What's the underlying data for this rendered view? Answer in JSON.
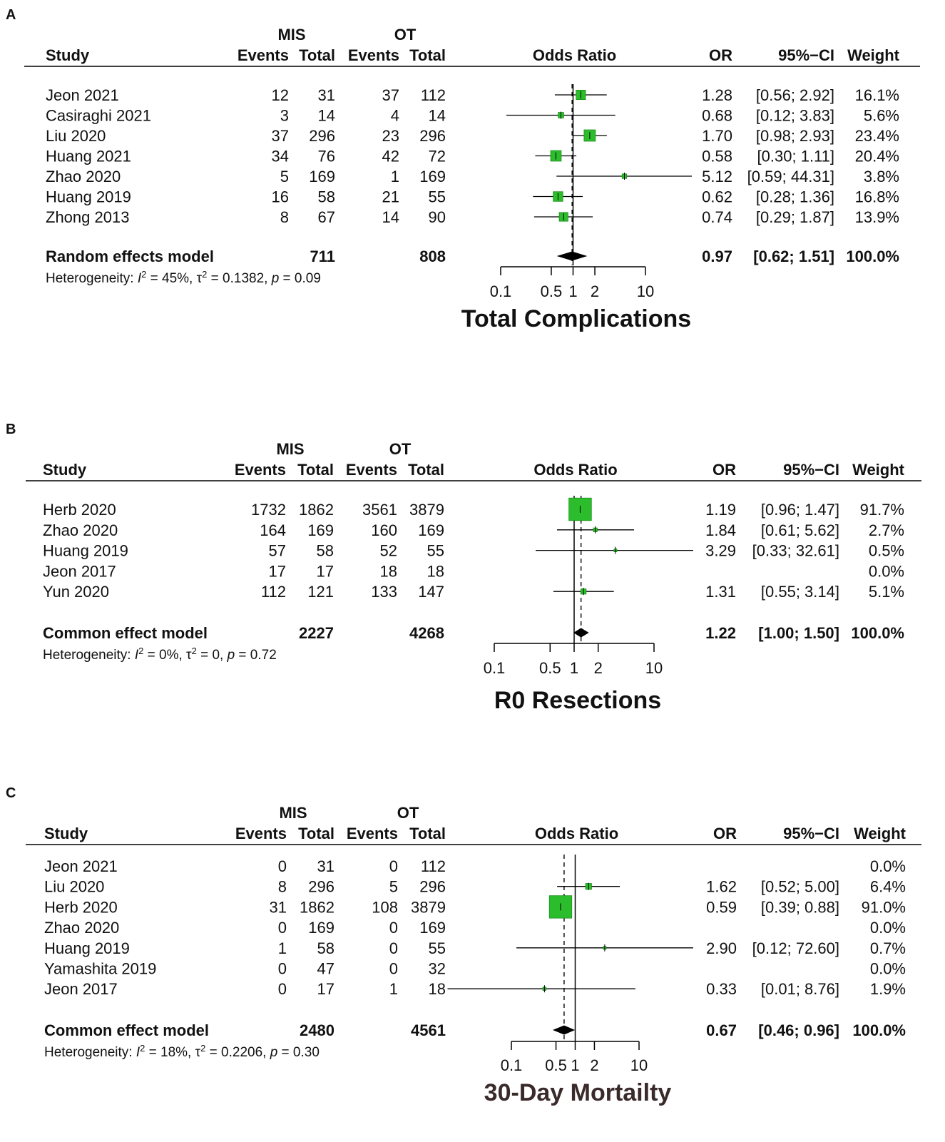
{
  "colors": {
    "box": "#2bbd2b",
    "box_edge": "#1a8f1a",
    "line": "#000000",
    "text": "#111111",
    "title": "#3a2a2a"
  },
  "chart_data": [
    {
      "type": "forest",
      "panel_label": "A",
      "title": "Total Complications",
      "group1": "MIS",
      "group2": "OT",
      "headers": {
        "study": "Study",
        "events": "Events",
        "total": "Total",
        "odds_ratio": "Odds Ratio",
        "or": "OR",
        "ci": "95%−CI",
        "weight": "Weight"
      },
      "x_scale": "log",
      "xlim": [
        0.1,
        10
      ],
      "ticks": [
        0.1,
        0.5,
        1,
        2,
        10
      ],
      "tick_labels": [
        "0.1",
        "0.5",
        "1",
        "2",
        "10"
      ],
      "dashed_ref": 0.97,
      "studies": [
        {
          "study": "Jeon 2021",
          "e1": "12",
          "n1": "31",
          "e2": "37",
          "n2": "112",
          "or": 1.28,
          "lo": 0.56,
          "hi": 2.92,
          "w": 16.1,
          "or_text": "1.28",
          "ci_text": "[0.56;  2.92]",
          "w_text": "16.1%"
        },
        {
          "study": "Casiraghi 2021",
          "e1": "3",
          "n1": "14",
          "e2": "4",
          "n2": "14",
          "or": 0.68,
          "lo": 0.12,
          "hi": 3.83,
          "w": 5.6,
          "or_text": "0.68",
          "ci_text": "[0.12;  3.83]",
          "w_text": "5.6%"
        },
        {
          "study": "Liu 2020",
          "e1": "37",
          "n1": "296",
          "e2": "23",
          "n2": "296",
          "or": 1.7,
          "lo": 0.98,
          "hi": 2.93,
          "w": 23.4,
          "or_text": "1.70",
          "ci_text": "[0.98;  2.93]",
          "w_text": "23.4%"
        },
        {
          "study": "Huang 2021",
          "e1": "34",
          "n1": "76",
          "e2": "42",
          "n2": "72",
          "or": 0.58,
          "lo": 0.3,
          "hi": 1.11,
          "w": 20.4,
          "or_text": "0.58",
          "ci_text": "[0.30;  1.11]",
          "w_text": "20.4%"
        },
        {
          "study": "Zhao 2020",
          "e1": "5",
          "n1": "169",
          "e2": "1",
          "n2": "169",
          "or": 5.12,
          "lo": 0.59,
          "hi": 44.31,
          "w": 3.8,
          "or_text": "5.12",
          "ci_text": "[0.59; 44.31]",
          "w_text": "3.8%"
        },
        {
          "study": "Huang 2019",
          "e1": "16",
          "n1": "58",
          "e2": "21",
          "n2": "55",
          "or": 0.62,
          "lo": 0.28,
          "hi": 1.36,
          "w": 16.8,
          "or_text": "0.62",
          "ci_text": "[0.28;  1.36]",
          "w_text": "16.8%"
        },
        {
          "study": "Zhong 2013",
          "e1": "8",
          "n1": "67",
          "e2": "14",
          "n2": "90",
          "or": 0.74,
          "lo": 0.29,
          "hi": 1.87,
          "w": 13.9,
          "or_text": "0.74",
          "ci_text": "[0.29;  1.87]",
          "w_text": "13.9%"
        }
      ],
      "pooled": {
        "label": "Random effects model",
        "n1": "711",
        "n2": "808",
        "or": 0.97,
        "lo": 0.62,
        "hi": 1.51,
        "or_text": "0.97",
        "ci_text": "[0.62;  1.51]",
        "w_text": "100.0%"
      },
      "heterogeneity": {
        "prefix": "Heterogeneity: ",
        "i2": "I",
        "i2_rest": " = 45%, ",
        "tau": "τ",
        "tau_rest": " = 0.1382, ",
        "p": "p",
        "p_rest": " = 0.09",
        "sup": "2"
      }
    },
    {
      "type": "forest",
      "panel_label": "B",
      "title": "R0 Resections",
      "group1": "MIS",
      "group2": "OT",
      "headers": {
        "study": "Study",
        "events": "Events",
        "total": "Total",
        "odds_ratio": "Odds Ratio",
        "or": "OR",
        "ci": "95%−CI",
        "weight": "Weight"
      },
      "x_scale": "log",
      "xlim": [
        0.1,
        10
      ],
      "ticks": [
        0.1,
        0.5,
        1,
        2,
        10
      ],
      "tick_labels": [
        "0.1",
        "0.5",
        "1",
        "2",
        "10"
      ],
      "dashed_ref": 1.22,
      "studies": [
        {
          "study": "Herb 2020",
          "e1": "1732",
          "n1": "1862",
          "e2": "3561",
          "n2": "3879",
          "or": 1.19,
          "lo": 0.96,
          "hi": 1.47,
          "w": 91.7,
          "or_text": "1.19",
          "ci_text": "[0.96;  1.47]",
          "w_text": "91.7%"
        },
        {
          "study": "Zhao 2020",
          "e1": "164",
          "n1": "169",
          "e2": "160",
          "n2": "169",
          "or": 1.84,
          "lo": 0.61,
          "hi": 5.62,
          "w": 2.7,
          "or_text": "1.84",
          "ci_text": "[0.61;  5.62]",
          "w_text": "2.7%"
        },
        {
          "study": "Huang 2019",
          "e1": "57",
          "n1": "58",
          "e2": "52",
          "n2": "55",
          "or": 3.29,
          "lo": 0.33,
          "hi": 32.61,
          "w": 0.5,
          "or_text": "3.29",
          "ci_text": "[0.33; 32.61]",
          "w_text": "0.5%"
        },
        {
          "study": "Jeon 2017",
          "e1": "17",
          "n1": "17",
          "e2": "18",
          "n2": "18",
          "or": null,
          "lo": null,
          "hi": null,
          "w": 0.0,
          "or_text": "",
          "ci_text": "",
          "w_text": "0.0%"
        },
        {
          "study": "Yun 2020",
          "e1": "112",
          "n1": "121",
          "e2": "133",
          "n2": "147",
          "or": 1.31,
          "lo": 0.55,
          "hi": 3.14,
          "w": 5.1,
          "or_text": "1.31",
          "ci_text": "[0.55;  3.14]",
          "w_text": "5.1%"
        }
      ],
      "pooled": {
        "label": "Common effect model",
        "n1": "2227",
        "n2": "4268",
        "or": 1.22,
        "lo": 1.0,
        "hi": 1.5,
        "or_text": "1.22",
        "ci_text": "[1.00;  1.50]",
        "w_text": "100.0%"
      },
      "heterogeneity": {
        "prefix": "Heterogeneity: ",
        "i2": "I",
        "i2_rest": " = 0%, ",
        "tau": "τ",
        "tau_rest": " = 0, ",
        "p": "p",
        "p_rest": " = 0.72",
        "sup": "2"
      }
    },
    {
      "type": "forest",
      "panel_label": "C",
      "title": "30-Day Mortailty",
      "group1": "MIS",
      "group2": "OT",
      "headers": {
        "study": "Study",
        "events": "Events",
        "total": "Total",
        "odds_ratio": "Odds Ratio",
        "or": "OR",
        "ci": "95%−CI",
        "weight": "Weight"
      },
      "x_scale": "log",
      "xlim": [
        0.1,
        10
      ],
      "ticks": [
        0.1,
        0.5,
        1,
        2,
        10
      ],
      "tick_labels": [
        "0.1",
        "0.5",
        "1",
        "2",
        "10"
      ],
      "dashed_ref": 0.67,
      "studies": [
        {
          "study": "Jeon 2021",
          "e1": "0",
          "n1": "31",
          "e2": "0",
          "n2": "112",
          "or": null,
          "lo": null,
          "hi": null,
          "w": 0.0,
          "or_text": "",
          "ci_text": "",
          "w_text": "0.0%"
        },
        {
          "study": "Liu 2020",
          "e1": "8",
          "n1": "296",
          "e2": "5",
          "n2": "296",
          "or": 1.62,
          "lo": 0.52,
          "hi": 5.0,
          "w": 6.4,
          "or_text": "1.62",
          "ci_text": "[0.52;  5.00]",
          "w_text": "6.4%"
        },
        {
          "study": "Herb 2020",
          "e1": "31",
          "n1": "1862",
          "e2": "108",
          "n2": "3879",
          "or": 0.59,
          "lo": 0.39,
          "hi": 0.88,
          "w": 91.0,
          "or_text": "0.59",
          "ci_text": "[0.39;  0.88]",
          "w_text": "91.0%"
        },
        {
          "study": "Zhao 2020",
          "e1": "0",
          "n1": "169",
          "e2": "0",
          "n2": "169",
          "or": null,
          "lo": null,
          "hi": null,
          "w": 0.0,
          "or_text": "",
          "ci_text": "",
          "w_text": "0.0%"
        },
        {
          "study": "Huang 2019",
          "e1": "1",
          "n1": "58",
          "e2": "0",
          "n2": "55",
          "or": 2.9,
          "lo": 0.12,
          "hi": 72.6,
          "w": 0.7,
          "or_text": "2.90",
          "ci_text": "[0.12; 72.60]",
          "w_text": "0.7%"
        },
        {
          "study": "Yamashita 2019",
          "e1": "0",
          "n1": "47",
          "e2": "0",
          "n2": "32",
          "or": null,
          "lo": null,
          "hi": null,
          "w": 0.0,
          "or_text": "",
          "ci_text": "",
          "w_text": "0.0%"
        },
        {
          "study": "Jeon 2017",
          "e1": "0",
          "n1": "17",
          "e2": "1",
          "n2": "18",
          "or": 0.33,
          "lo": 0.01,
          "hi": 8.76,
          "w": 1.9,
          "or_text": "0.33",
          "ci_text": "[0.01;  8.76]",
          "w_text": "1.9%"
        }
      ],
      "pooled": {
        "label": "Common effect model",
        "n1": "2480",
        "n2": "4561",
        "or": 0.67,
        "lo": 0.46,
        "hi": 0.96,
        "or_text": "0.67",
        "ci_text": "[0.46;  0.96]",
        "w_text": "100.0%"
      },
      "heterogeneity": {
        "prefix": "Heterogeneity: ",
        "i2": "I",
        "i2_rest": " = 18%, ",
        "tau": "τ",
        "tau_rest": " = 0.2206, ",
        "p": "p",
        "p_rest": " = 0.30",
        "sup": "2"
      }
    }
  ]
}
